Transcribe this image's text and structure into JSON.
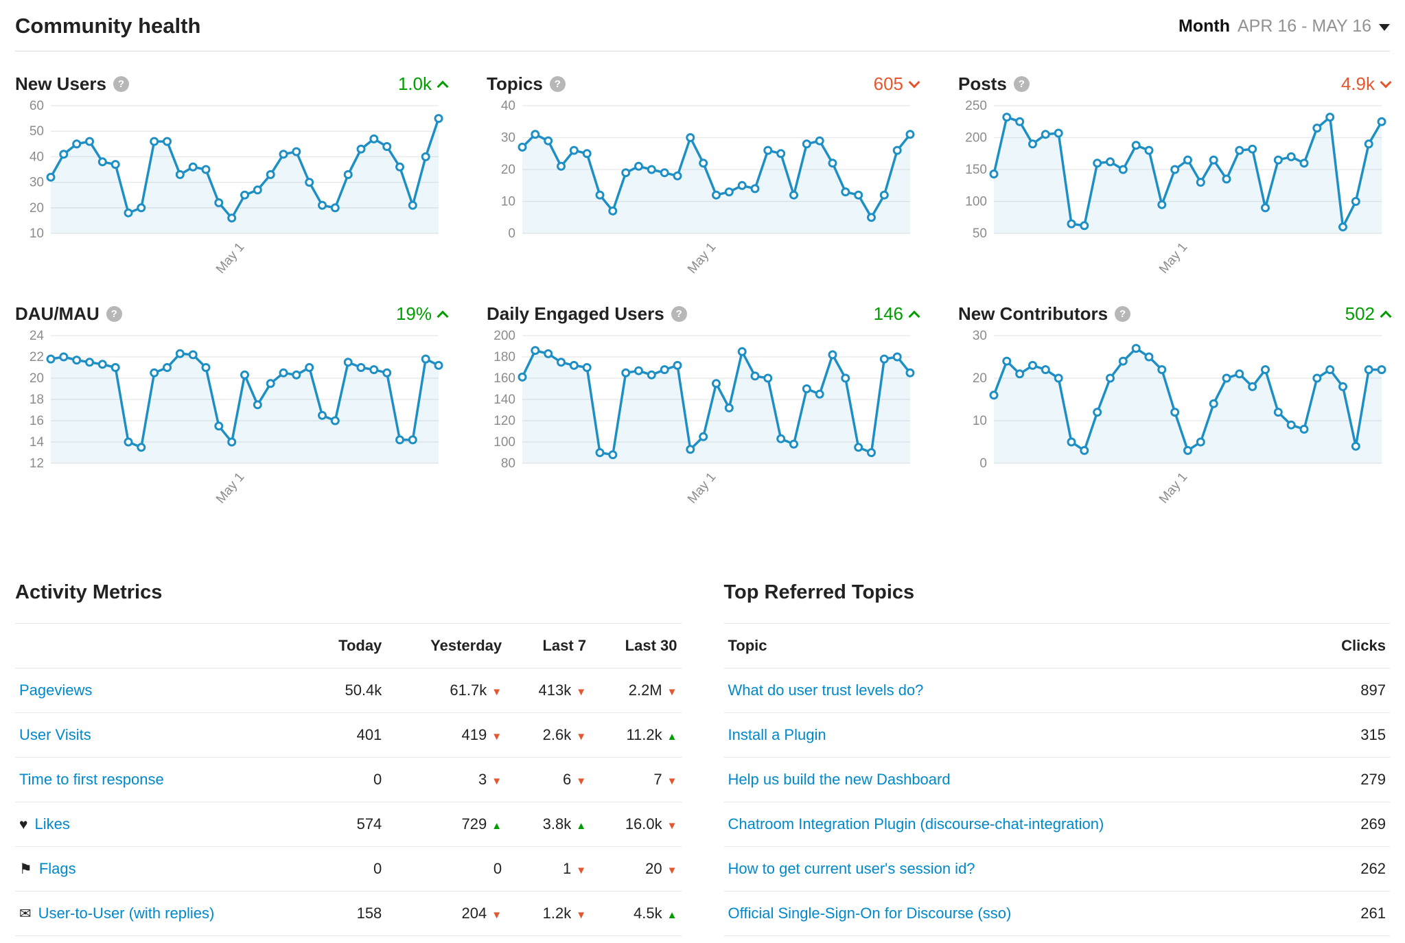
{
  "glyphs": {
    "help": "?",
    "up_triangle": "▲",
    "down_triangle": "▼"
  },
  "colors": {
    "line": "#1e8fc4",
    "area_opacity": 0.08,
    "up": "#009d00",
    "down": "#e4572e",
    "link": "#0088cc",
    "axis_text": "#8c8c8c",
    "grid": "#e8e8e8"
  },
  "header": {
    "title": "Community health",
    "period_label": "Month",
    "period_value": "APR 16 - MAY 16"
  },
  "charts": [
    {
      "key": "new-users",
      "title": "New Users",
      "value": "1.0k",
      "trend": "up",
      "chart_data": {
        "type": "line",
        "x_label": "May 1",
        "x_label_index": 15,
        "ylim": [
          10,
          60
        ],
        "yticks": [
          10,
          20,
          30,
          40,
          50,
          60
        ],
        "values": [
          32,
          41,
          45,
          46,
          38,
          37,
          18,
          20,
          46,
          46,
          33,
          36,
          35,
          22,
          16,
          25,
          27,
          33,
          41,
          42,
          30,
          21,
          20,
          33,
          43,
          47,
          44,
          36,
          21,
          40,
          55
        ]
      }
    },
    {
      "key": "topics",
      "title": "Topics",
      "value": "605",
      "trend": "down",
      "chart_data": {
        "type": "line",
        "x_label": "May 1",
        "x_label_index": 15,
        "ylim": [
          0,
          40
        ],
        "yticks": [
          0,
          10,
          20,
          30,
          40
        ],
        "values": [
          27,
          31,
          29,
          21,
          26,
          25,
          12,
          7,
          19,
          21,
          20,
          19,
          18,
          30,
          22,
          12,
          13,
          15,
          14,
          26,
          25,
          12,
          28,
          29,
          22,
          13,
          12,
          5,
          12,
          26,
          31
        ]
      }
    },
    {
      "key": "posts",
      "title": "Posts",
      "value": "4.9k",
      "trend": "down",
      "chart_data": {
        "type": "line",
        "x_label": "May 1",
        "x_label_index": 15,
        "ylim": [
          50,
          250
        ],
        "yticks": [
          50,
          100,
          150,
          200,
          250
        ],
        "values": [
          143,
          232,
          225,
          190,
          205,
          207,
          65,
          62,
          160,
          162,
          150,
          188,
          180,
          95,
          150,
          165,
          130,
          165,
          135,
          180,
          182,
          90,
          165,
          170,
          160,
          215,
          232,
          60,
          100,
          190,
          225
        ]
      }
    },
    {
      "key": "dau-mau",
      "title": "DAU/MAU",
      "value": "19%",
      "trend": "up",
      "chart_data": {
        "type": "line",
        "x_label": "May 1",
        "x_label_index": 15,
        "ylim": [
          12,
          24
        ],
        "yticks": [
          12,
          14,
          16,
          18,
          20,
          22,
          24
        ],
        "values": [
          21.8,
          22,
          21.7,
          21.5,
          21.3,
          21,
          14,
          13.5,
          20.5,
          21,
          22.3,
          22.2,
          21,
          15.5,
          14,
          20.3,
          17.5,
          19.5,
          20.5,
          20.3,
          21,
          16.5,
          16,
          21.5,
          21,
          20.8,
          20.5,
          14.2,
          14.2,
          21.8,
          21.2
        ]
      }
    },
    {
      "key": "daily-engaged-users",
      "title": "Daily Engaged Users",
      "value": "146",
      "trend": "up",
      "chart_data": {
        "type": "line",
        "x_label": "May 1",
        "x_label_index": 15,
        "ylim": [
          80,
          200
        ],
        "yticks": [
          80,
          100,
          120,
          140,
          160,
          180,
          200
        ],
        "values": [
          161,
          186,
          183,
          175,
          172,
          170,
          90,
          88,
          165,
          167,
          163,
          168,
          172,
          93,
          105,
          155,
          132,
          185,
          162,
          160,
          103,
          98,
          150,
          145,
          182,
          160,
          95,
          90,
          178,
          180,
          165
        ]
      }
    },
    {
      "key": "new-contributors",
      "title": "New Contributors",
      "value": "502",
      "trend": "up",
      "chart_data": {
        "type": "line",
        "x_label": "May 1",
        "x_label_index": 15,
        "ylim": [
          0,
          30
        ],
        "yticks": [
          0,
          10,
          20,
          30
        ],
        "values": [
          16,
          24,
          21,
          23,
          22,
          20,
          5,
          3,
          12,
          20,
          24,
          27,
          25,
          22,
          12,
          3,
          5,
          14,
          20,
          21,
          18,
          22,
          12,
          9,
          8,
          20,
          22,
          18,
          4,
          22,
          22
        ]
      }
    }
  ],
  "activity_metrics": {
    "title": "Activity Metrics",
    "columns": [
      "Today",
      "Yesterday",
      "Last 7",
      "Last 30"
    ],
    "rows": [
      {
        "label": "Pageviews",
        "icon": null,
        "cells": [
          {
            "v": "50.4k"
          },
          {
            "v": "61.7k",
            "t": "down"
          },
          {
            "v": "413k",
            "t": "down"
          },
          {
            "v": "2.2M",
            "t": "down"
          }
        ]
      },
      {
        "label": "User Visits",
        "icon": null,
        "cells": [
          {
            "v": "401"
          },
          {
            "v": "419",
            "t": "down"
          },
          {
            "v": "2.6k",
            "t": "down"
          },
          {
            "v": "11.2k",
            "t": "up"
          }
        ]
      },
      {
        "label": "Time to first response",
        "icon": null,
        "cells": [
          {
            "v": "0"
          },
          {
            "v": "3",
            "t": "down"
          },
          {
            "v": "6",
            "t": "down"
          },
          {
            "v": "7",
            "t": "down"
          }
        ]
      },
      {
        "label": "Likes",
        "icon": {
          "name": "heart-icon",
          "glyph": "♥"
        },
        "cells": [
          {
            "v": "574"
          },
          {
            "v": "729",
            "t": "up"
          },
          {
            "v": "3.8k",
            "t": "up"
          },
          {
            "v": "16.0k",
            "t": "down"
          }
        ]
      },
      {
        "label": "Flags",
        "icon": {
          "name": "flag-icon",
          "glyph": "⚑"
        },
        "cells": [
          {
            "v": "0"
          },
          {
            "v": "0"
          },
          {
            "v": "1",
            "t": "down"
          },
          {
            "v": "20",
            "t": "down"
          }
        ]
      },
      {
        "label": "User-to-User (with replies)",
        "icon": {
          "name": "envelope-icon",
          "glyph": "✉"
        },
        "cells": [
          {
            "v": "158"
          },
          {
            "v": "204",
            "t": "down"
          },
          {
            "v": "1.2k",
            "t": "down"
          },
          {
            "v": "4.5k",
            "t": "up"
          }
        ]
      }
    ]
  },
  "top_referred": {
    "title": "Top Referred Topics",
    "columns": [
      "Topic",
      "Clicks"
    ],
    "rows": [
      {
        "topic": "What do user trust levels do?",
        "clicks": "897"
      },
      {
        "topic": "Install a Plugin",
        "clicks": "315"
      },
      {
        "topic": "Help us build the new Dashboard",
        "clicks": "279"
      },
      {
        "topic": "Chatroom Integration Plugin (discourse-chat-integration)",
        "clicks": "269"
      },
      {
        "topic": "How to get current user's session id?",
        "clicks": "262"
      },
      {
        "topic": "Official Single-Sign-On for Discourse (sso)",
        "clicks": "261"
      }
    ]
  }
}
